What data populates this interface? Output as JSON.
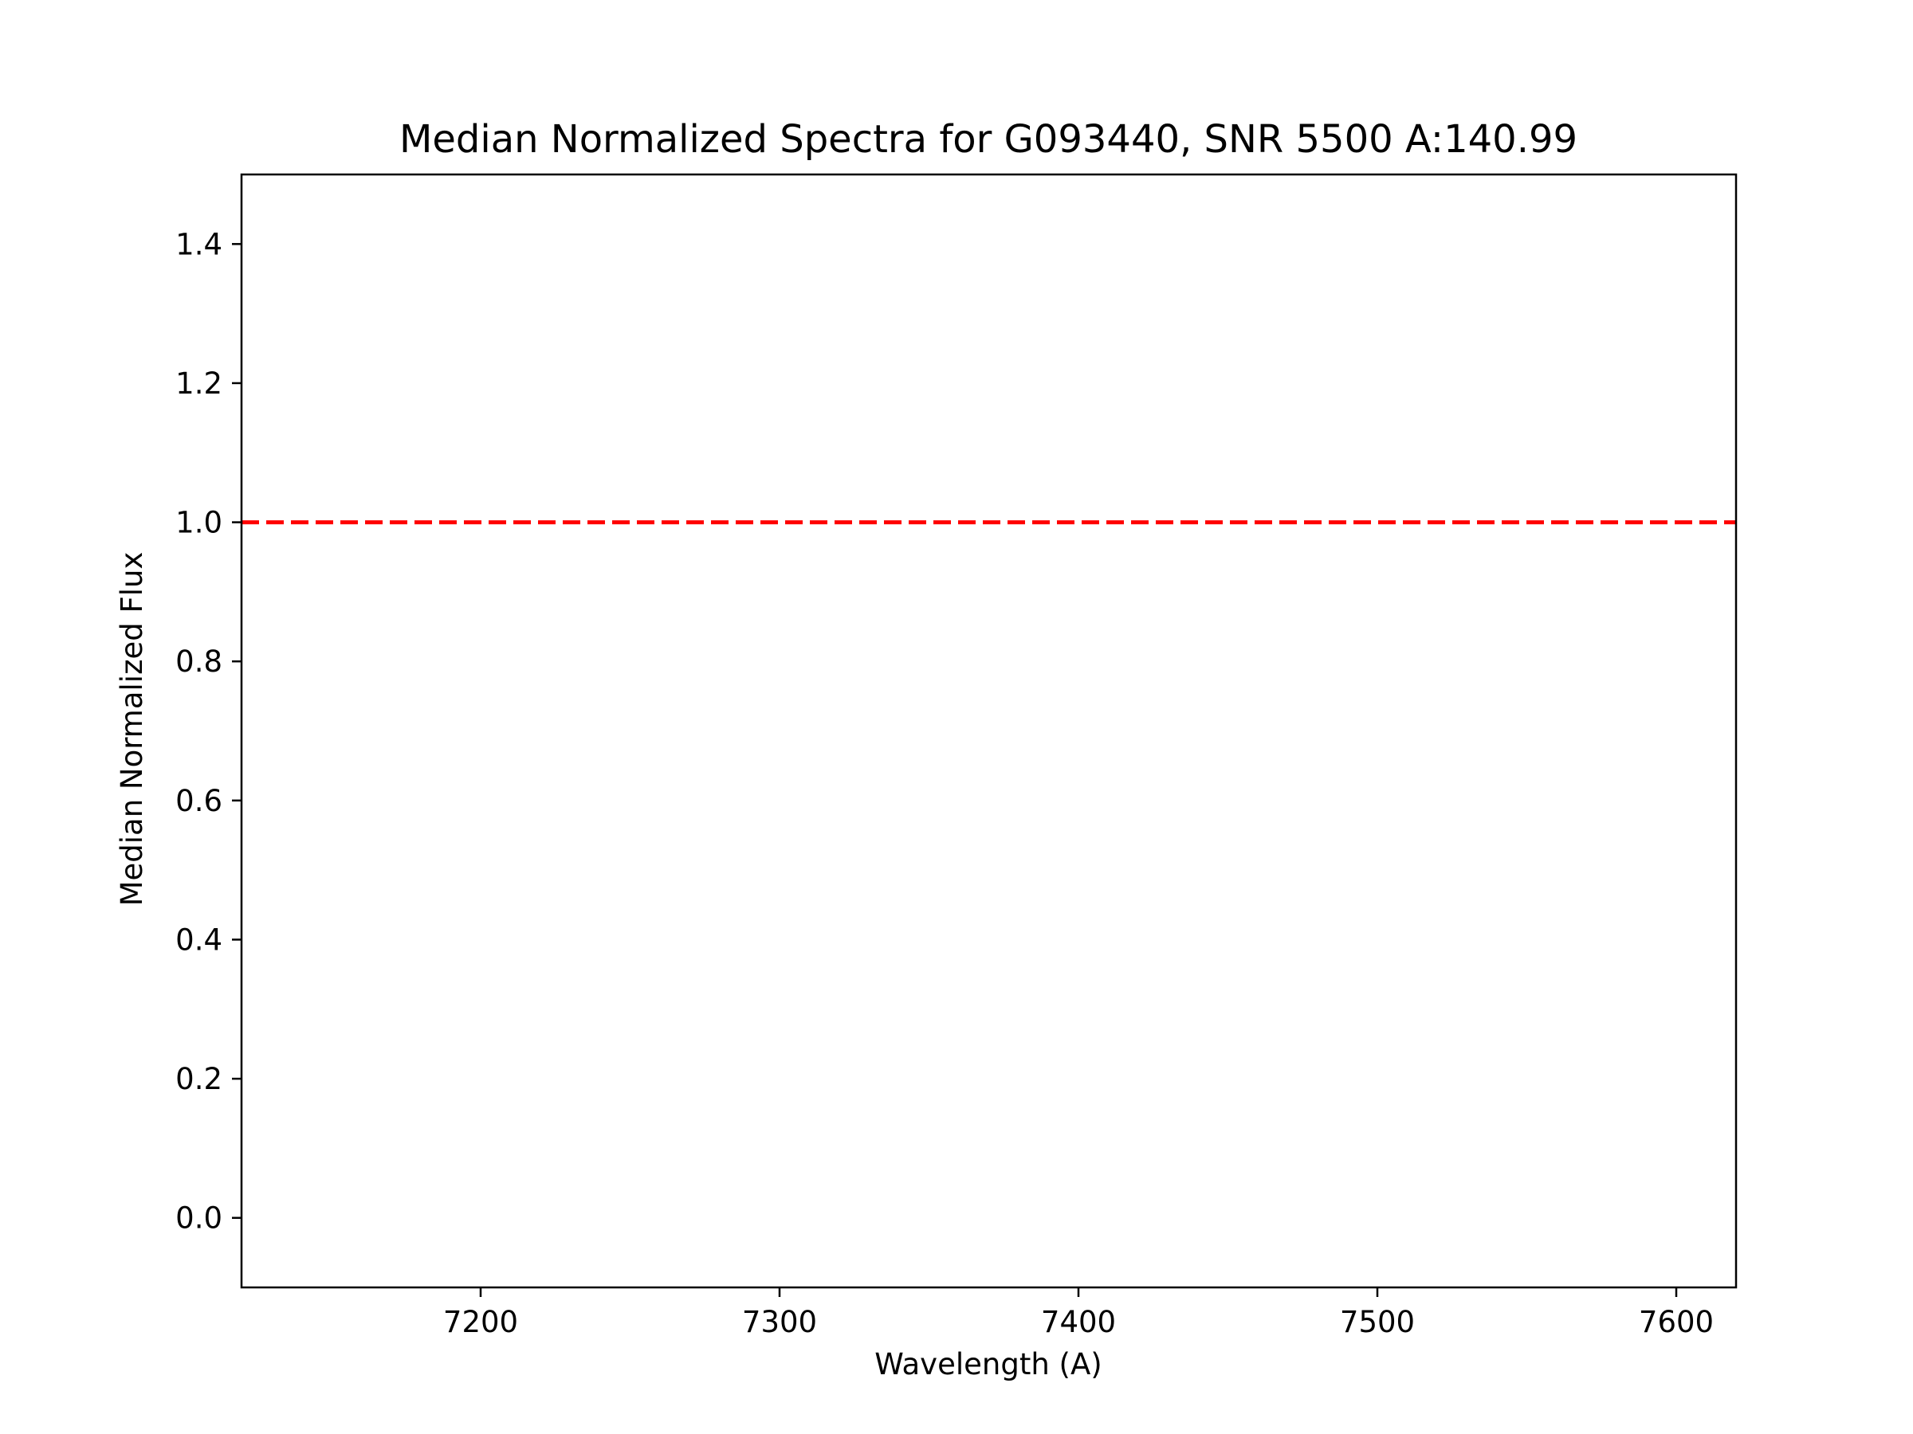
{
  "chart_data": {
    "type": "line",
    "title": "Median Normalized Spectra for G093440, SNR 5500 A:140.99",
    "xlabel": "Wavelength (A)",
    "ylabel": "Median Normalized Flux",
    "xlim": [
      7120,
      7620
    ],
    "ylim": [
      -0.1,
      1.5
    ],
    "x_ticks": [
      7200,
      7300,
      7400,
      7500,
      7600
    ],
    "y_ticks": [
      0.0,
      0.2,
      0.4,
      0.6,
      0.8,
      1.0,
      1.2,
      1.4
    ],
    "grid": false,
    "legend": "none",
    "series": [],
    "reference_lines": [
      {
        "orientation": "horizontal",
        "y": 1.0,
        "style": "dashed",
        "color": "#ff0000"
      }
    ]
  }
}
